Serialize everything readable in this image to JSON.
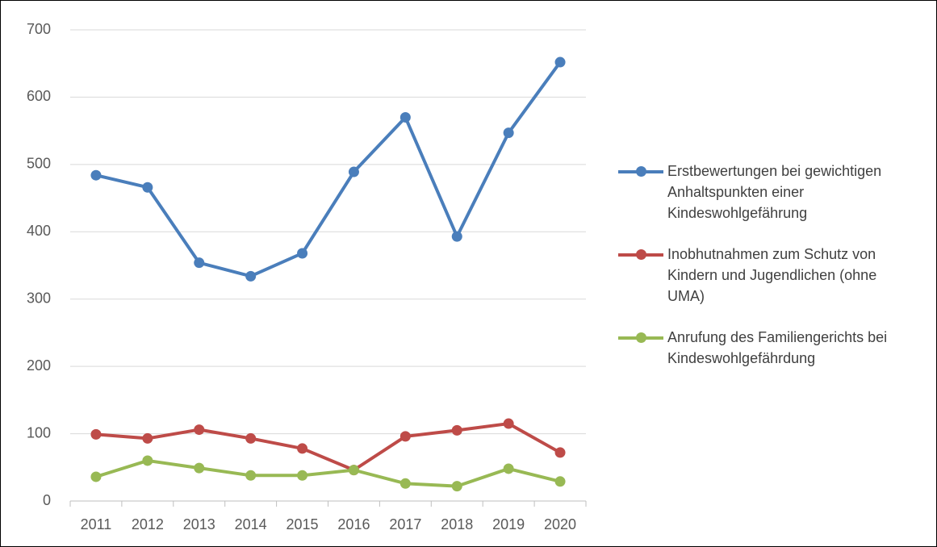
{
  "chart_data": {
    "type": "line",
    "categories": [
      "2011",
      "2012",
      "2013",
      "2014",
      "2015",
      "2016",
      "2017",
      "2018",
      "2019",
      "2020"
    ],
    "series": [
      {
        "name": "Erstbewertungen bei gewichtigen Anhaltspunkten einer Kindeswohlgefährung",
        "color": "#4a7ebb",
        "values": [
          484,
          466,
          354,
          334,
          368,
          489,
          570,
          393,
          547,
          652
        ]
      },
      {
        "name": "Inobhutnahmen zum Schutz von Kindern und Jugendlichen (ohne UMA)",
        "color": "#be4b48",
        "values": [
          99,
          93,
          106,
          93,
          78,
          46,
          96,
          105,
          115,
          72
        ]
      },
      {
        "name": "Anrufung des Familiengerichts bei Kindeswohlgefährdung",
        "color": "#98b954",
        "values": [
          36,
          60,
          49,
          38,
          38,
          46,
          26,
          22,
          48,
          29
        ]
      }
    ],
    "ylim": [
      0,
      700
    ],
    "yticks": [
      0,
      100,
      200,
      300,
      400,
      500,
      600,
      700
    ],
    "grid": true,
    "legend": "right"
  }
}
